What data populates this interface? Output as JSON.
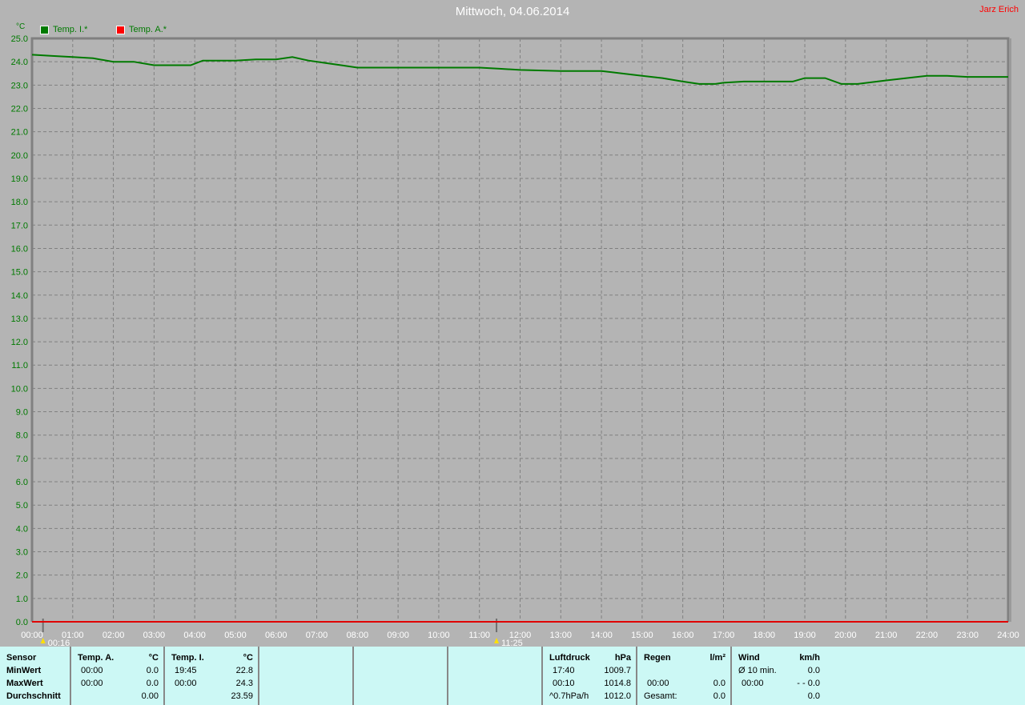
{
  "title": "Mittwoch, 04.06.2014",
  "author": "Jarz Erich",
  "colors": {
    "temp_i": "#007a00",
    "temp_a": "#e00000",
    "axis_text": "#007a00",
    "background": "#b4b4b4",
    "panel": "#ccf8f5"
  },
  "chart_data": {
    "type": "line",
    "title": "Mittwoch, 04.06.2014",
    "ylabel": "°C",
    "ylim": [
      0,
      25
    ],
    "xlim": [
      "00:00",
      "24:00"
    ],
    "grid": true,
    "legend_position": "top-left",
    "yticks": [
      "0.0",
      "1.0",
      "2.0",
      "3.0",
      "4.0",
      "5.0",
      "6.0",
      "7.0",
      "8.0",
      "9.0",
      "10.0",
      "11.0",
      "12.0",
      "13.0",
      "14.0",
      "15.0",
      "16.0",
      "17.0",
      "18.0",
      "19.0",
      "20.0",
      "21.0",
      "22.0",
      "23.0",
      "24.0",
      "25.0"
    ],
    "xticks": [
      "00:00",
      "01:00",
      "02:00",
      "03:00",
      "04:00",
      "05:00",
      "06:00",
      "07:00",
      "08:00",
      "09:00",
      "10:00",
      "11:00",
      "12:00",
      "13:00",
      "14:00",
      "15:00",
      "16:00",
      "17:00",
      "18:00",
      "19:00",
      "20:00",
      "21:00",
      "22:00",
      "23:00",
      "24:00"
    ],
    "markers": [
      {
        "label": "00:16",
        "hour": 0.27
      },
      {
        "label": "11:25",
        "hour": 11.42
      }
    ],
    "series": [
      {
        "name": "Temp. I.*",
        "color": "#007a00",
        "x": [
          0,
          0.5,
          1,
          1.5,
          2,
          2.5,
          3,
          3.5,
          3.9,
          4.2,
          4.5,
          5,
          5.5,
          6,
          6.4,
          6.8,
          7.2,
          7.6,
          8,
          9,
          10,
          11,
          11.5,
          12,
          13,
          13.5,
          14,
          14.5,
          15,
          15.5,
          16,
          16.4,
          16.8,
          17,
          17.5,
          18,
          18.7,
          19,
          19.5,
          19.9,
          20.3,
          21,
          21.5,
          22,
          22.5,
          23,
          24
        ],
        "values": [
          24.3,
          24.25,
          24.2,
          24.15,
          24.0,
          24.0,
          23.85,
          23.85,
          23.85,
          24.05,
          24.05,
          24.05,
          24.1,
          24.1,
          24.2,
          24.05,
          23.95,
          23.85,
          23.75,
          23.75,
          23.75,
          23.75,
          23.7,
          23.65,
          23.6,
          23.6,
          23.6,
          23.5,
          23.4,
          23.3,
          23.15,
          23.05,
          23.05,
          23.1,
          23.15,
          23.15,
          23.15,
          23.3,
          23.3,
          23.05,
          23.05,
          23.2,
          23.3,
          23.4,
          23.4,
          23.35,
          23.35
        ]
      },
      {
        "name": "Temp. A.*",
        "color": "#e00000",
        "x": [
          0,
          24
        ],
        "values": [
          0,
          0
        ]
      }
    ]
  },
  "panel": {
    "sensor": {
      "header": "Sensor",
      "min": "MinWert",
      "max": "MaxWert",
      "avg": "Durchschnitt"
    },
    "temp_a": {
      "header": "Temp. A.",
      "unit": "°C",
      "min_time": "00:00",
      "min": "0.0",
      "max_time": "00:00",
      "max": "0.0",
      "avg": "0.00"
    },
    "temp_i": {
      "header": "Temp. I.",
      "unit": "°C",
      "min_time": "19:45",
      "min": "22.8",
      "max_time": "00:00",
      "max": "24.3",
      "avg": "23.59"
    },
    "pressure": {
      "header": "Luftdruck",
      "unit": "hPa",
      "min_time": "17:40",
      "min": "1009.7",
      "max_time": "00:10",
      "max": "1014.8",
      "trend": "^0.7hPa/h",
      "avg": "1012.0"
    },
    "rain": {
      "header": "Regen",
      "unit": "l/m²",
      "max_time": "00:00",
      "max": "0.0",
      "total_label": "Gesamt:",
      "total": "0.0"
    },
    "wind": {
      "header": "Wind",
      "unit": "km/h",
      "avg_label": "Ø 10 min.",
      "avg": "0.0",
      "max_time": "00:00",
      "max": "- - 0.0",
      "last": "0.0"
    }
  }
}
